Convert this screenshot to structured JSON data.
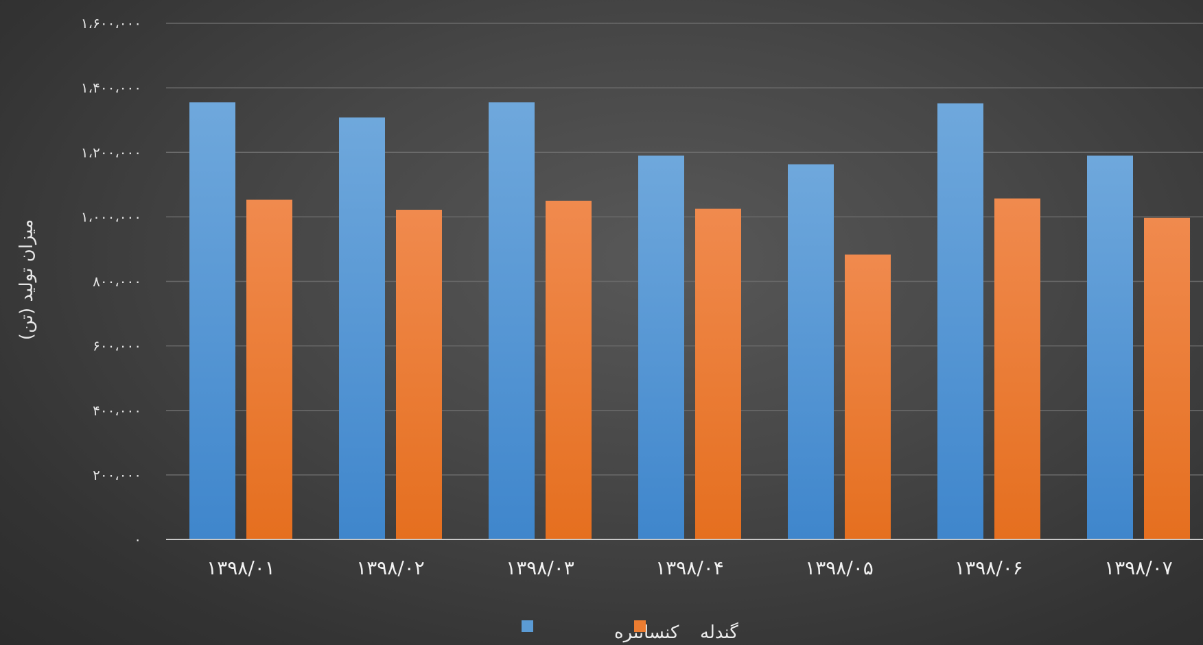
{
  "chart_data": {
    "type": "bar",
    "ylabel": "میزان تولید (تن)",
    "ylim": [
      0,
      1600000
    ],
    "yticks": [
      0,
      200000,
      400000,
      600000,
      800000,
      1000000,
      1200000,
      1400000,
      1600000
    ],
    "ytick_labels": [
      "۰",
      "۲۰۰،۰۰۰",
      "۴۰۰،۰۰۰",
      "۶۰۰،۰۰۰",
      "۸۰۰،۰۰۰",
      "۱،۰۰۰،۰۰۰",
      "۱،۲۰۰،۰۰۰",
      "۱،۴۰۰،۰۰۰",
      "۱،۶۰۰،۰۰۰"
    ],
    "categories": [
      "۱۳۹۸/۰۱",
      "۱۳۹۸/۰۲",
      "۱۳۹۸/۰۳",
      "۱۳۹۸/۰۴",
      "۱۳۹۸/۰۵",
      "۱۳۹۸/۰۶",
      "۱۳۹۸/۰۷"
    ],
    "grid": true,
    "legend_position": "bottom",
    "series": [
      {
        "name": "کنسانتره",
        "color": "#5b9bd5",
        "values": [
          1355000,
          1308000,
          1355000,
          1190000,
          1163000,
          1352000,
          1190000
        ]
      },
      {
        "name": "گندله",
        "color": "#ed7d31",
        "values": [
          1053000,
          1022000,
          1050000,
          1025000,
          883000,
          1057000,
          997000
        ]
      }
    ]
  }
}
